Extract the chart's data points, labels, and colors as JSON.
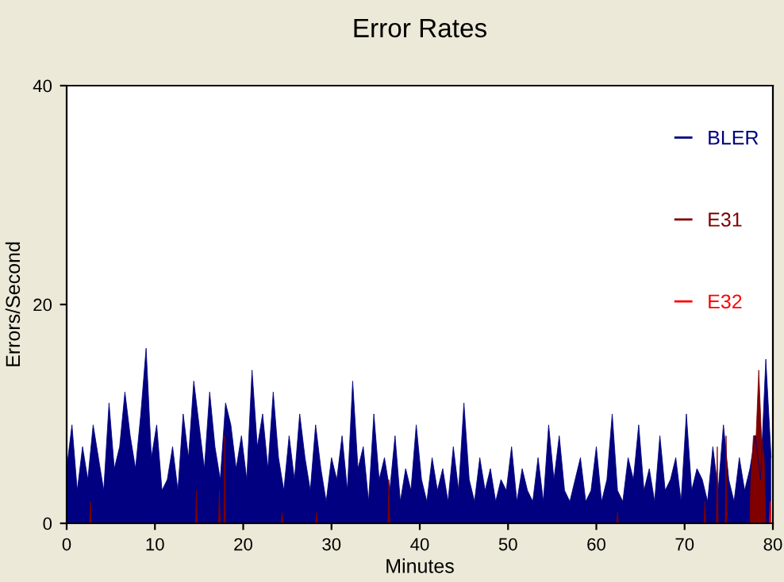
{
  "chart_data": {
    "type": "area",
    "title": "Error Rates",
    "xlabel": "Minutes",
    "ylabel": "Errors/Second",
    "xlim": [
      0,
      80
    ],
    "ylim": [
      0,
      40
    ],
    "xticks": [
      0,
      10,
      20,
      30,
      40,
      50,
      60,
      70,
      80
    ],
    "yticks": [
      0,
      20,
      40
    ],
    "grid": false,
    "legend": "right",
    "series": [
      {
        "name": "BLER",
        "color": "#000080",
        "x": [
          0,
          0.6,
          1.2,
          1.8,
          2.4,
          3,
          3.6,
          4.2,
          4.8,
          5.4,
          6,
          6.6,
          7.2,
          7.8,
          8.4,
          9,
          9.6,
          10.2,
          10.8,
          11.4,
          12,
          12.6,
          13.2,
          13.8,
          14.4,
          15,
          15.6,
          16.2,
          16.8,
          17.4,
          18,
          18.6,
          19.2,
          19.8,
          20.4,
          21,
          21.6,
          22.2,
          22.8,
          23.4,
          24,
          24.6,
          25.2,
          25.8,
          26.4,
          27,
          27.6,
          28.2,
          28.8,
          29.4,
          30,
          30.6,
          31.2,
          31.8,
          32.4,
          33,
          33.6,
          34.2,
          34.8,
          35.4,
          36,
          36.6,
          37.2,
          37.8,
          38.4,
          39,
          39.6,
          40.2,
          40.8,
          41.4,
          42,
          42.6,
          43.2,
          43.8,
          44.4,
          45,
          45.6,
          46.2,
          46.8,
          47.4,
          48,
          48.6,
          49.2,
          49.8,
          50.4,
          51,
          51.6,
          52.2,
          52.8,
          53.4,
          54,
          54.6,
          55.2,
          55.8,
          56.4,
          57,
          57.6,
          58.2,
          58.8,
          59.4,
          60,
          60.6,
          61.2,
          61.8,
          62.4,
          63,
          63.6,
          64.2,
          64.8,
          65.4,
          66,
          66.6,
          67.2,
          67.8,
          68.4,
          69,
          69.6,
          70.2,
          70.8,
          71.4,
          72,
          72.6,
          73.2,
          73.8,
          74.4,
          75,
          75.6,
          76.2,
          76.8,
          77.4,
          78,
          78.6,
          79.2,
          79.8
        ],
        "values": [
          5,
          9,
          3,
          7,
          4,
          9,
          6,
          3,
          11,
          5,
          7,
          12,
          8,
          5,
          10,
          16,
          6,
          9,
          3,
          4,
          7,
          3,
          10,
          6,
          13,
          9,
          5,
          12,
          7,
          4,
          11,
          9,
          5,
          8,
          4,
          14,
          7,
          10,
          5,
          12,
          6,
          3,
          8,
          4,
          10,
          6,
          3,
          9,
          5,
          2,
          6,
          4,
          8,
          3,
          13,
          5,
          7,
          2,
          10,
          4,
          6,
          3,
          8,
          2,
          5,
          3,
          9,
          4,
          2,
          6,
          3,
          5,
          2,
          7,
          3,
          11,
          4,
          2,
          6,
          3,
          5,
          2,
          4,
          3,
          7,
          2,
          5,
          3,
          2,
          6,
          2,
          9,
          4,
          8,
          3,
          2,
          4,
          6,
          2,
          3,
          7,
          2,
          4,
          10,
          3,
          2,
          6,
          4,
          9,
          3,
          5,
          2,
          8,
          3,
          4,
          6,
          2,
          10,
          3,
          5,
          4,
          2,
          7,
          3,
          9,
          4,
          2,
          6,
          3,
          5,
          8,
          4,
          15,
          6
        ]
      },
      {
        "name": "E31",
        "color": "#800000",
        "x": [
          2.6,
          2.7,
          2.8,
          14.6,
          14.7,
          14.8,
          17.2,
          17.3,
          17.4,
          17.8,
          17.9,
          18.0,
          24.3,
          24.4,
          24.5,
          28.2,
          28.3,
          28.4,
          36.4,
          36.5,
          36.6,
          62.3,
          62.4,
          62.5,
          72.2,
          72.3,
          72.4,
          73.6,
          73.7,
          73.8,
          74.6,
          74.7,
          74.8,
          77.4,
          77.5,
          77.8,
          78.1,
          78.4,
          78.7,
          79.0,
          79.2
        ],
        "values": [
          0,
          2,
          0,
          0,
          3,
          0,
          0,
          3,
          0,
          0,
          8,
          0,
          0,
          1,
          0,
          0,
          1,
          0,
          0,
          4,
          0,
          0,
          1,
          0,
          0,
          2,
          0,
          0,
          7,
          0,
          0,
          8,
          0,
          0,
          4,
          8,
          8,
          14,
          8,
          6,
          0
        ]
      },
      {
        "name": "E32",
        "color": "#ff0000",
        "x": [
          79.6,
          79.7,
          79.8
        ],
        "values": [
          0,
          2,
          0
        ]
      }
    ]
  }
}
